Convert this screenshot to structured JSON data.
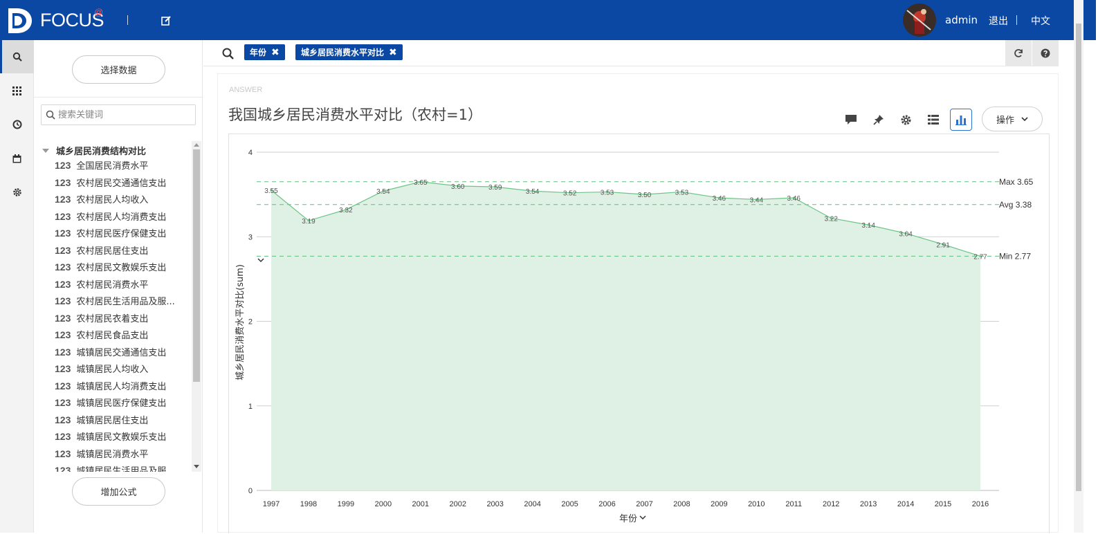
{
  "header": {
    "brand": "FOCUS",
    "brand_mark": "@",
    "user": "admin",
    "logout": "退出",
    "language": "中文"
  },
  "sidenav": [
    "search-icon",
    "grid-icon",
    "history-icon",
    "calendar-icon",
    "gear-icon"
  ],
  "data_panel": {
    "select_data_label": "选择数据",
    "search_placeholder": "搜索关键词",
    "group": "城乡居民消费结构对比",
    "fields": [
      "全国居民消费水平",
      "农村居民交通通信支出",
      "农村居民人均收入",
      "农村居民人均消费支出",
      "农村居民医疗保健支出",
      "农村居民居住支出",
      "农村居民文教娱乐支出",
      "农村居民消费水平",
      "农村居民生活用品及服...",
      "农村居民衣着支出",
      "农村居民食品支出",
      "城镇居民交通通信支出",
      "城镇居民人均收入",
      "城镇居民人均消费支出",
      "城镇居民医疗保健支出",
      "城镇居民居住支出",
      "城镇居民文教娱乐支出",
      "城镇居民消费水平",
      "城镇居民生活用品及服..."
    ],
    "field_type_label": "123",
    "add_formula_label": "增加公式"
  },
  "search": {
    "chips": [
      "年份",
      "城乡居民消费水平对比"
    ]
  },
  "answer": {
    "label": "ANSWER",
    "title": "我国城乡居民消费水平对比（农村=1）",
    "ops_label": "操作"
  },
  "chart_data": {
    "type": "area",
    "title": "我国城乡居民消费水平对比（农村=1）",
    "x": [
      "1997",
      "1998",
      "1999",
      "2000",
      "2001",
      "2002",
      "2003",
      "2004",
      "2005",
      "2006",
      "2007",
      "2008",
      "2009",
      "2010",
      "2011",
      "2012",
      "2013",
      "2014",
      "2015",
      "2016"
    ],
    "values": [
      3.55,
      3.19,
      3.32,
      3.54,
      3.65,
      3.6,
      3.59,
      3.54,
      3.52,
      3.53,
      3.5,
      3.53,
      3.46,
      3.44,
      3.46,
      3.22,
      3.14,
      3.04,
      2.91,
      2.77
    ],
    "value_labels": [
      "3.55",
      "3.19",
      "3.32",
      "3.54",
      "3.65",
      "3.60",
      "3.59",
      "3.54",
      "3.52",
      "3.53",
      "3.50",
      "3.53",
      "3.46",
      "3.44",
      "3.46",
      "3.22",
      "3.14",
      "3.04",
      "2.91",
      "2.77"
    ],
    "xlabel": "年份",
    "ylabel": "城乡居民消费水平对比(sum)",
    "ylim": [
      0,
      4
    ],
    "yticks": [
      "0",
      "1",
      "2",
      "3",
      "4"
    ],
    "reference_lines": [
      {
        "label": "Max 3.65",
        "value": 3.65
      },
      {
        "label": "Avg 3.38",
        "value": 3.38
      },
      {
        "label": "Min 2.77",
        "value": 2.77
      }
    ],
    "grid": true,
    "colors": {
      "line": "#6cc486",
      "fill": "#dff1e5",
      "ref": "#5fbf7a"
    }
  }
}
